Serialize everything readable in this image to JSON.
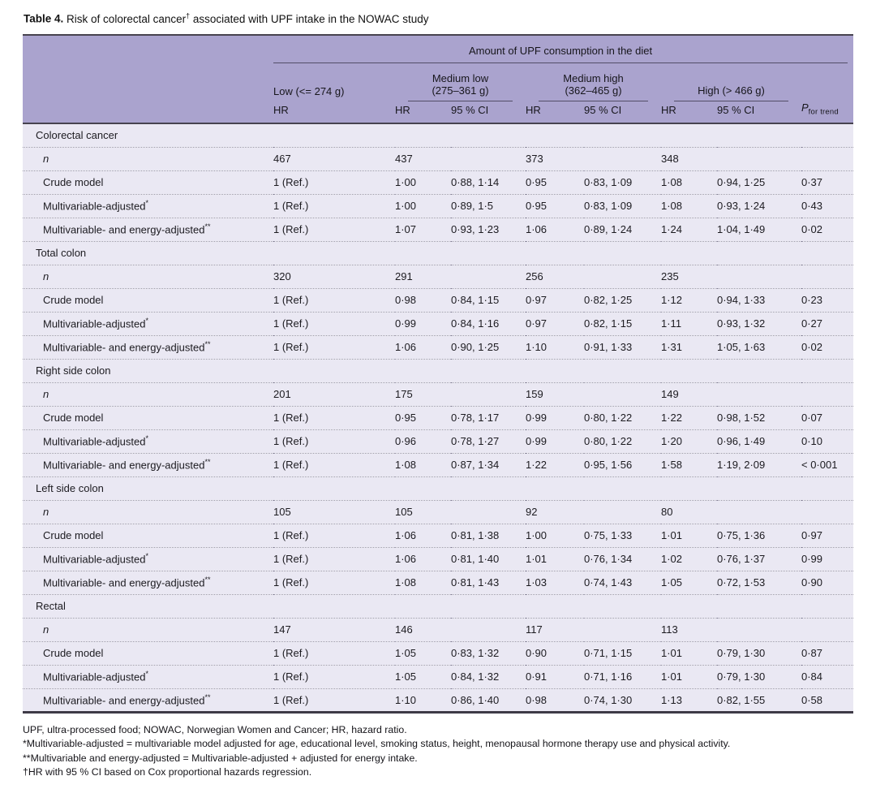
{
  "title": {
    "label": "Table 4.",
    "pre_sup": "Risk of colorectal cancer",
    "sup": "†",
    "post_sup": " associated with UPF intake in the NOWAC study"
  },
  "header": {
    "spanner": "Amount of UPF consumption in the diet",
    "groups": [
      {
        "line1": "Low (<= 274 g)",
        "line2": ""
      },
      {
        "line1": "Medium low",
        "line2": "(275–361 g)"
      },
      {
        "line1": "Medium high",
        "line2": "(362–465 g)"
      },
      {
        "line1": "High (> 466 g)",
        "line2": ""
      }
    ],
    "cols": [
      "HR",
      "HR",
      "95 % CI",
      "HR",
      "95 % CI",
      "HR",
      "95 % CI"
    ],
    "p_main": "P",
    "p_sub": "for trend"
  },
  "sections": [
    {
      "name": "Colorectal cancer",
      "rows": [
        {
          "label": "n",
          "italic": true,
          "sup": "",
          "cells": [
            "467",
            "437",
            "",
            "373",
            "",
            "348",
            "",
            ""
          ]
        },
        {
          "label": "Crude model",
          "italic": false,
          "sup": "",
          "cells": [
            "1 (Ref.)",
            "1·00",
            "0·88, 1·14",
            "0·95",
            "0·83, 1·09",
            "1·08",
            "0·94, 1·25",
            "0·37"
          ]
        },
        {
          "label": "Multivariable-adjusted",
          "italic": false,
          "sup": "*",
          "cells": [
            "1 (Ref.)",
            "1·00",
            "0·89, 1·5",
            "0·95",
            "0·83, 1·09",
            "1·08",
            "0·93, 1·24",
            "0·43"
          ]
        },
        {
          "label": "Multivariable- and energy-adjusted",
          "italic": false,
          "sup": "**",
          "cells": [
            "1 (Ref.)",
            "1·07",
            "0·93, 1·23",
            "1·06",
            "0·89, 1·24",
            "1·24",
            "1·04, 1·49",
            "0·02"
          ]
        }
      ]
    },
    {
      "name": "Total colon",
      "rows": [
        {
          "label": "n",
          "italic": true,
          "sup": "",
          "cells": [
            "320",
            "291",
            "",
            "256",
            "",
            "235",
            "",
            ""
          ]
        },
        {
          "label": "Crude model",
          "italic": false,
          "sup": "",
          "cells": [
            "1 (Ref.)",
            "0·98",
            "0·84, 1·15",
            "0·97",
            "0·82, 1·25",
            "1·12",
            "0·94, 1·33",
            "0·23"
          ]
        },
        {
          "label": "Multivariable-adjusted",
          "italic": false,
          "sup": "*",
          "cells": [
            "1 (Ref.)",
            "0·99",
            "0·84, 1·16",
            "0·97",
            "0·82, 1·15",
            "1·11",
            "0·93, 1·32",
            "0·27"
          ]
        },
        {
          "label": "Multivariable- and energy-adjusted",
          "italic": false,
          "sup": "**",
          "cells": [
            "1 (Ref.)",
            "1·06",
            "0·90, 1·25",
            "1·10",
            "0·91, 1·33",
            "1·31",
            "1·05, 1·63",
            "0·02"
          ]
        }
      ]
    },
    {
      "name": "Right side colon",
      "rows": [
        {
          "label": "n",
          "italic": true,
          "sup": "",
          "cells": [
            "201",
            "175",
            "",
            "159",
            "",
            "149",
            "",
            ""
          ]
        },
        {
          "label": "Crude model",
          "italic": false,
          "sup": "",
          "cells": [
            "1 (Ref.)",
            "0·95",
            "0·78, 1·17",
            "0·99",
            "0·80, 1·22",
            "1·22",
            "0·98, 1·52",
            "0·07"
          ]
        },
        {
          "label": "Multivariable-adjusted",
          "italic": false,
          "sup": "*",
          "cells": [
            "1 (Ref.)",
            "0·96",
            "0·78, 1·27",
            "0·99",
            "0·80, 1·22",
            "1·20",
            "0·96, 1·49",
            "0·10"
          ]
        },
        {
          "label": "Multivariable- and energy-adjusted",
          "italic": false,
          "sup": "**",
          "cells": [
            "1 (Ref.)",
            "1·08",
            "0·87, 1·34",
            "1·22",
            "0·95, 1·56",
            "1·58",
            "1·19, 2·09",
            "< 0·001"
          ]
        }
      ]
    },
    {
      "name": "Left side colon",
      "rows": [
        {
          "label": "n",
          "italic": true,
          "sup": "",
          "cells": [
            "105",
            "105",
            "",
            "92",
            "",
            "80",
            "",
            ""
          ]
        },
        {
          "label": "Crude model",
          "italic": false,
          "sup": "",
          "cells": [
            "1 (Ref.)",
            "1·06",
            "0·81, 1·38",
            "1·00",
            "0·75, 1·33",
            "1·01",
            "0·75, 1·36",
            "0·97"
          ]
        },
        {
          "label": "Multivariable-adjusted",
          "italic": false,
          "sup": "*",
          "cells": [
            "1 (Ref.)",
            "1·06",
            "0·81, 1·40",
            "1·01",
            "0·76, 1·34",
            "1·02",
            "0·76, 1·37",
            "0·99"
          ]
        },
        {
          "label": "Multivariable- and energy-adjusted",
          "italic": false,
          "sup": "**",
          "cells": [
            "1 (Ref.)",
            "1·08",
            "0·81, 1·43",
            "1·03",
            "0·74, 1·43",
            "1·05",
            "0·72, 1·53",
            "0·90"
          ]
        }
      ]
    },
    {
      "name": "Rectal",
      "rows": [
        {
          "label": "n",
          "italic": true,
          "sup": "",
          "cells": [
            "147",
            "146",
            "",
            "117",
            "",
            "113",
            "",
            ""
          ]
        },
        {
          "label": "Crude model",
          "italic": false,
          "sup": "",
          "cells": [
            "1 (Ref.)",
            "1·05",
            "0·83, 1·32",
            "0·90",
            "0·71, 1·15",
            "1·01",
            "0·79, 1·30",
            "0·87"
          ]
        },
        {
          "label": "Multivariable-adjusted",
          "italic": false,
          "sup": "*",
          "cells": [
            "1 (Ref.)",
            "1·05",
            "0·84, 1·32",
            "0·91",
            "0·71, 1·16",
            "1·01",
            "0·79, 1·30",
            "0·84"
          ]
        },
        {
          "label": "Multivariable- and energy-adjusted",
          "italic": false,
          "sup": "**",
          "cells": [
            "1 (Ref.)",
            "1·10",
            "0·86, 1·40",
            "0·98",
            "0·74, 1·30",
            "1·13",
            "0·82, 1·55",
            "0·58"
          ]
        }
      ]
    }
  ],
  "footnotes": [
    "UPF, ultra-processed food; NOWAC, Norwegian Women and Cancer; HR, hazard ratio.",
    "*Multivariable-adjusted = multivariable model adjusted for age, educational level, smoking status, height, menopausal hormone therapy use and physical activity.",
    "**Multivariable and energy-adjusted = Multivariable-adjusted + adjusted for energy intake.",
    "†HR with 95 % CI based on Cox proportional hazards regression."
  ],
  "colors": {
    "header_band": "#aaa3ce",
    "body_bg": "#eae8f3",
    "rule_dark": "#47434f",
    "dotted_separator": "#918ea1"
  }
}
